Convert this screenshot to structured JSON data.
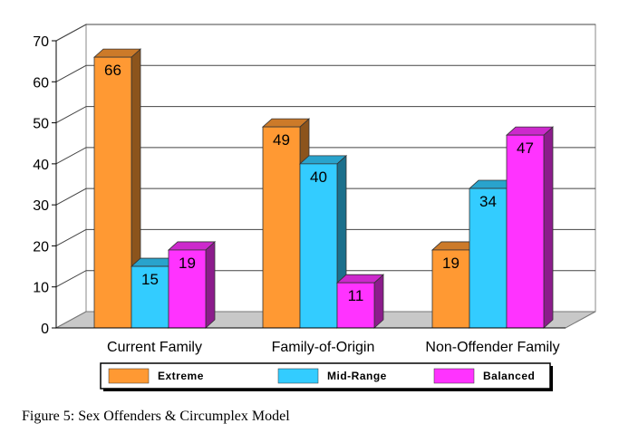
{
  "chart_data": {
    "type": "bar",
    "categories": [
      "Current Family",
      "Family-of-Origin",
      "Non-Offender Family"
    ],
    "series": [
      {
        "name": "Extreme",
        "values": [
          66,
          49,
          19
        ],
        "color": "#FF9933"
      },
      {
        "name": "Mid-Range",
        "values": [
          15,
          40,
          34
        ],
        "color": "#33CCFF"
      },
      {
        "name": "Balanced",
        "values": [
          19,
          11,
          47
        ],
        "color": "#FF33FF"
      }
    ],
    "ylim": [
      0,
      70
    ],
    "yticks": [
      0,
      10,
      20,
      30,
      40,
      50,
      60,
      70
    ],
    "grid": true,
    "legend_position": "bottom",
    "style": "3d"
  },
  "caption": "Figure 5: Sex Offenders & Circumplex Model"
}
